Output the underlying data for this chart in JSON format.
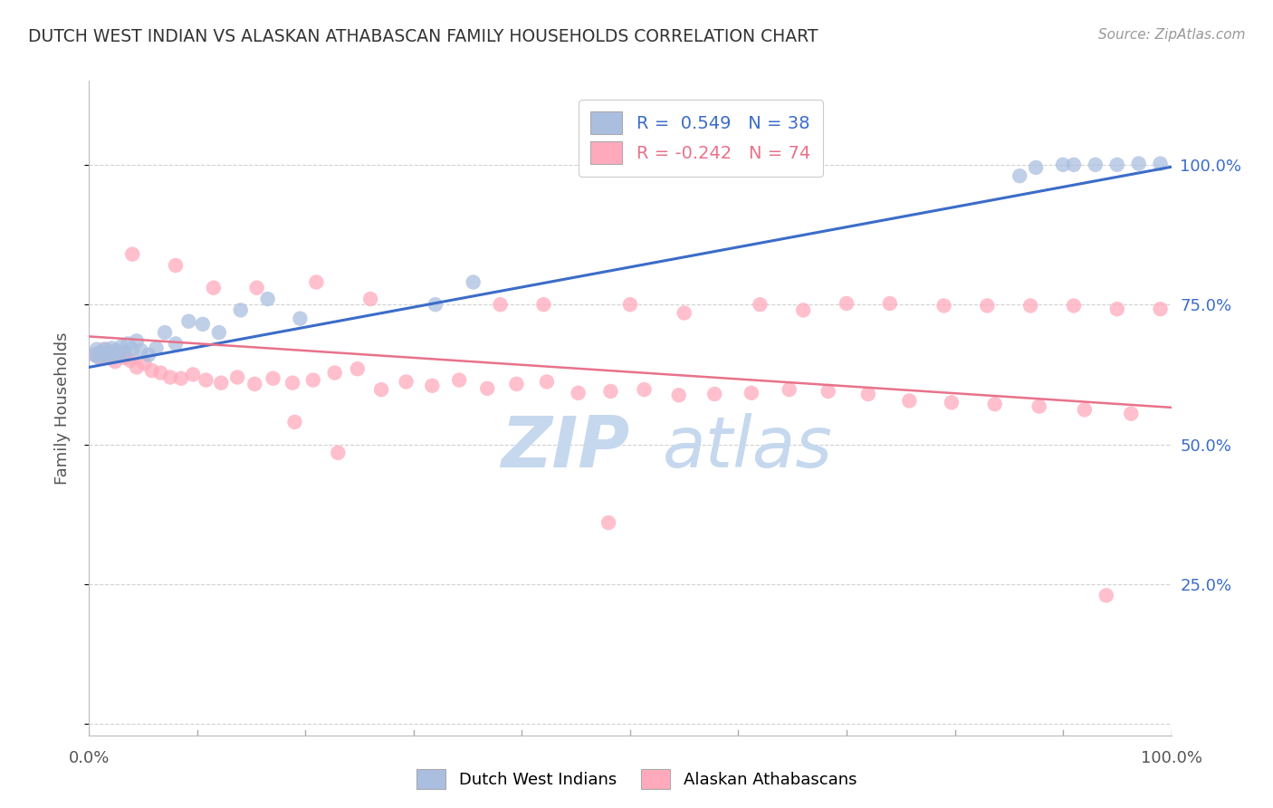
{
  "title": "DUTCH WEST INDIAN VS ALASKAN ATHABASCAN FAMILY HOUSEHOLDS CORRELATION CHART",
  "source": "Source: ZipAtlas.com",
  "ylabel": "Family Households",
  "blue_R": 0.549,
  "blue_N": 38,
  "pink_R": -0.242,
  "pink_N": 74,
  "blue_color": "#AABFE0",
  "pink_color": "#FFAABC",
  "blue_line_color": "#3B6CC9",
  "pink_line_color": "#E8728A",
  "legend_text_blue": "#3B6CC9",
  "legend_text_pink": "#E8728A",
  "watermark_zip_color": "#C5D8EE",
  "watermark_atlas_color": "#C5D8EE",
  "background_color": "#FFFFFF",
  "grid_color": "#CCCCCC",
  "right_tick_color": "#3B6CC9",
  "title_color": "#333333",
  "source_color": "#999999",
  "ylabel_color": "#555555",
  "blue_line_intercept": 0.638,
  "blue_line_slope": 0.358,
  "pink_line_intercept": 0.693,
  "pink_line_slope": -0.127,
  "xlim": [
    0.0,
    1.0
  ],
  "ylim": [
    -0.02,
    1.15
  ],
  "ytick_positions": [
    0.0,
    0.25,
    0.5,
    0.75,
    1.0
  ],
  "right_ytick_labels": [
    "",
    "25.0%",
    "50.0%",
    "75.0%",
    "100.0%"
  ],
  "blue_x": [
    0.005,
    0.007,
    0.009,
    0.011,
    0.013,
    0.015,
    0.017,
    0.019,
    0.021,
    0.023,
    0.025,
    0.027,
    0.03,
    0.033,
    0.036,
    0.04,
    0.044,
    0.048,
    0.055,
    0.062,
    0.07,
    0.08,
    0.092,
    0.105,
    0.12,
    0.14,
    0.165,
    0.195,
    0.32,
    0.355,
    0.86,
    0.875,
    0.9,
    0.91,
    0.93,
    0.95,
    0.97,
    0.99
  ],
  "blue_y": [
    0.66,
    0.67,
    0.655,
    0.665,
    0.66,
    0.67,
    0.658,
    0.665,
    0.672,
    0.66,
    0.668,
    0.658,
    0.675,
    0.665,
    0.68,
    0.67,
    0.685,
    0.668,
    0.66,
    0.672,
    0.7,
    0.68,
    0.72,
    0.715,
    0.7,
    0.74,
    0.76,
    0.725,
    0.75,
    0.79,
    0.98,
    0.995,
    1.0,
    1.0,
    1.0,
    1.0,
    1.002,
    1.002
  ],
  "pink_x": [
    0.005,
    0.008,
    0.011,
    0.014,
    0.017,
    0.02,
    0.024,
    0.028,
    0.033,
    0.038,
    0.044,
    0.051,
    0.058,
    0.066,
    0.075,
    0.085,
    0.096,
    0.108,
    0.122,
    0.137,
    0.153,
    0.17,
    0.188,
    0.207,
    0.227,
    0.248,
    0.27,
    0.293,
    0.317,
    0.342,
    0.368,
    0.395,
    0.423,
    0.452,
    0.482,
    0.513,
    0.545,
    0.578,
    0.612,
    0.647,
    0.683,
    0.72,
    0.758,
    0.797,
    0.837,
    0.878,
    0.92,
    0.963,
    0.04,
    0.08,
    0.115,
    0.155,
    0.21,
    0.26,
    0.38,
    0.42,
    0.5,
    0.55,
    0.62,
    0.66,
    0.7,
    0.74,
    0.79,
    0.83,
    0.87,
    0.91,
    0.95,
    0.99,
    0.19,
    0.23,
    0.48,
    0.94
  ],
  "pink_y": [
    0.66,
    0.662,
    0.655,
    0.67,
    0.658,
    0.665,
    0.648,
    0.66,
    0.655,
    0.65,
    0.638,
    0.645,
    0.632,
    0.628,
    0.62,
    0.618,
    0.625,
    0.615,
    0.61,
    0.62,
    0.608,
    0.618,
    0.61,
    0.615,
    0.628,
    0.635,
    0.598,
    0.612,
    0.605,
    0.615,
    0.6,
    0.608,
    0.612,
    0.592,
    0.595,
    0.598,
    0.588,
    0.59,
    0.592,
    0.598,
    0.595,
    0.59,
    0.578,
    0.575,
    0.572,
    0.568,
    0.562,
    0.555,
    0.84,
    0.82,
    0.78,
    0.78,
    0.79,
    0.76,
    0.75,
    0.75,
    0.75,
    0.735,
    0.75,
    0.74,
    0.752,
    0.752,
    0.748,
    0.748,
    0.748,
    0.748,
    0.742,
    0.742,
    0.54,
    0.485,
    0.36,
    0.23
  ]
}
